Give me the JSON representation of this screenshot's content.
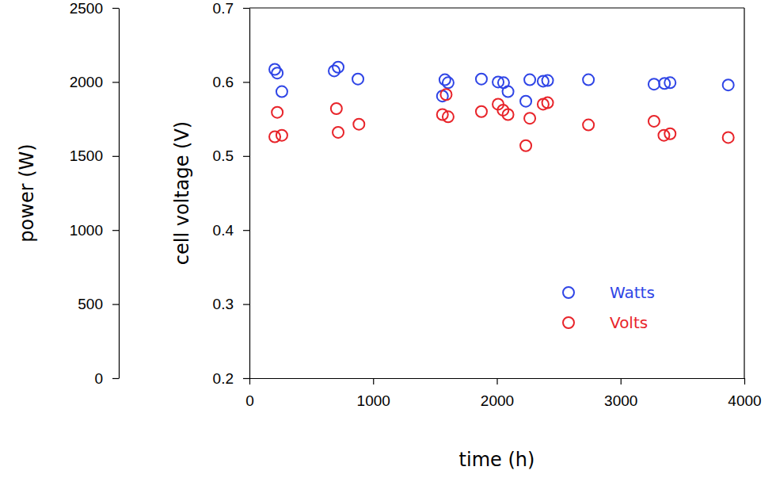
{
  "chart_data": {
    "type": "scatter",
    "x_label": "time (h)",
    "y_label": "cell voltage (V)",
    "y2_label": "power (W)",
    "xlim": [
      0,
      4000
    ],
    "xticks": [
      0,
      1000,
      2000,
      3000,
      4000
    ],
    "ylim": [
      0.2,
      0.7
    ],
    "yticks": [
      0.2,
      0.3,
      0.4,
      0.5,
      0.6,
      0.7
    ],
    "y2lim": [
      0,
      2500
    ],
    "y2ticks": [
      0,
      500,
      1000,
      1500,
      2000,
      2500
    ],
    "legend": "lower right",
    "series": [
      {
        "name": "Watts",
        "color": "#2f45e6",
        "marker": "open-circle",
        "axis": "y2",
        "x": [
          205,
          225,
          262,
          685,
          717,
          877,
          1560,
          1580,
          1606,
          1875,
          2010,
          2054,
          2090,
          2234,
          2266,
          2374,
          2410,
          2740,
          3270,
          3355,
          3400,
          3870
        ],
        "values": [
          2085,
          2060,
          1935,
          2075,
          2100,
          2020,
          1905,
          2015,
          1995,
          2020,
          2000,
          1995,
          1935,
          1870,
          2015,
          2005,
          2010,
          2015,
          1985,
          1990,
          1995,
          1980
        ]
      },
      {
        "name": "Volts",
        "color": "#e8242a",
        "marker": "open-circle",
        "x": [
          205,
          225,
          262,
          703,
          717,
          885,
          1560,
          1590,
          1606,
          1875,
          2010,
          2050,
          2090,
          2234,
          2266,
          2374,
          2410,
          2740,
          3270,
          3350,
          3400,
          3870
        ],
        "values": [
          0.526,
          0.559,
          0.528,
          0.564,
          0.532,
          0.543,
          0.556,
          0.583,
          0.553,
          0.56,
          0.57,
          0.562,
          0.556,
          0.514,
          0.551,
          0.57,
          0.572,
          0.542,
          0.547,
          0.528,
          0.53,
          0.525
        ]
      }
    ]
  }
}
